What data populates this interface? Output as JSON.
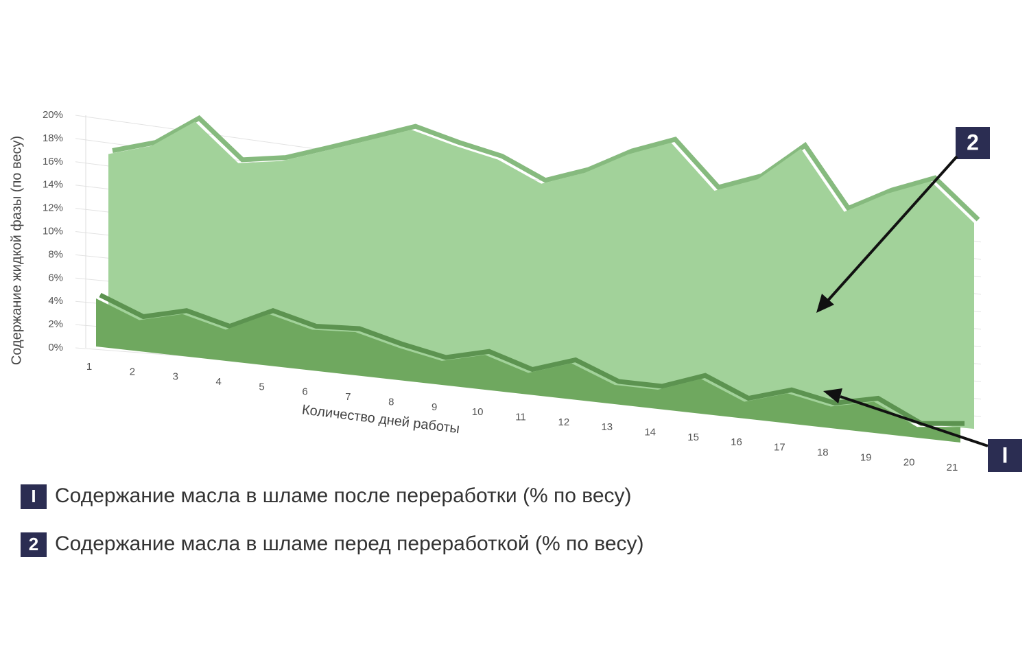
{
  "chart_data": {
    "type": "area3d",
    "y_axis_label": "Содержание жидкой  фазы (по весу)",
    "x_axis_label": "Количество дней работы",
    "categories": [
      "1",
      "2",
      "3",
      "4",
      "5",
      "6",
      "7",
      "8",
      "9",
      "10",
      "11",
      "12",
      "13",
      "14",
      "15",
      "16",
      "17",
      "18",
      "19",
      "20",
      "21"
    ],
    "ylim": [
      0,
      20
    ],
    "yticks": [
      {
        "value": 0,
        "label": "0%"
      },
      {
        "value": 2,
        "label": "2%"
      },
      {
        "value": 4,
        "label": "4%"
      },
      {
        "value": 6,
        "label": "6%"
      },
      {
        "value": 8,
        "label": "8%"
      },
      {
        "value": 10,
        "label": "10%"
      },
      {
        "value": 12,
        "label": "12%"
      },
      {
        "value": 14,
        "label": "14%"
      },
      {
        "value": 16,
        "label": "16%"
      },
      {
        "value": 18,
        "label": "18%"
      },
      {
        "value": 20,
        "label": "20%"
      }
    ],
    "grid": true,
    "series": [
      {
        "name": "Содержание масла в шламе после переработки (% по весу)",
        "label": "I",
        "color": "#6fa85f",
        "values": [
          4,
          2.6,
          3.5,
          2.6,
          4.3,
          3.4,
          3.6,
          2.7,
          2,
          2.9,
          1.8,
          3,
          1.6,
          1.6,
          2.9,
          1.4,
          2.5,
          1.8,
          2.6,
          0.9,
          1.3
        ]
      },
      {
        "name": "Содержание масла в  шламе перед переработкой (% по весу)",
        "label": "2",
        "color": "#a2d29a",
        "values": [
          16.5,
          17.2,
          19.2,
          15.8,
          16,
          16.8,
          17.6,
          18.4,
          17.2,
          16.2,
          14.5,
          15.3,
          16.6,
          17.4,
          14.2,
          15,
          17,
          13,
          14.2,
          15,
          12.5
        ]
      }
    ]
  }
}
